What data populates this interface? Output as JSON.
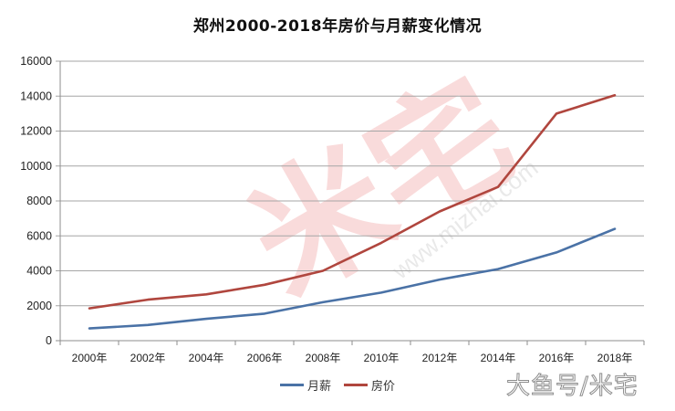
{
  "title": "郑州2000-2018年房价与月薪变化情况",
  "legend": [
    {
      "name": "月薪",
      "color": "#4a72a6"
    },
    {
      "name": "房价",
      "color": "#b0463e"
    }
  ],
  "watermarks": {
    "center_logo": "米宅",
    "center_url": "www.mizhai.com",
    "bottom_right": "大鱼号/米宅"
  },
  "chart_data": {
    "type": "line",
    "title": "郑州2000-2018年房价与月薪变化情况",
    "xlabel": "",
    "ylabel": "",
    "categories": [
      "2000年",
      "2002年",
      "2004年",
      "2006年",
      "2008年",
      "2010年",
      "2012年",
      "2014年",
      "2016年",
      "2018年"
    ],
    "series": [
      {
        "name": "月薪",
        "color": "#4a72a6",
        "values": [
          700,
          900,
          1250,
          1550,
          2200,
          2750,
          3500,
          4100,
          5050,
          6400
        ]
      },
      {
        "name": "房价",
        "color": "#b0463e",
        "values": [
          1850,
          2350,
          2650,
          3200,
          4000,
          5600,
          7400,
          8800,
          13000,
          14050
        ]
      }
    ],
    "ylim": [
      0,
      16000
    ],
    "yticks": [
      0,
      2000,
      4000,
      6000,
      8000,
      10000,
      12000,
      14000,
      16000
    ],
    "grid": true,
    "legend_position": "bottom"
  }
}
